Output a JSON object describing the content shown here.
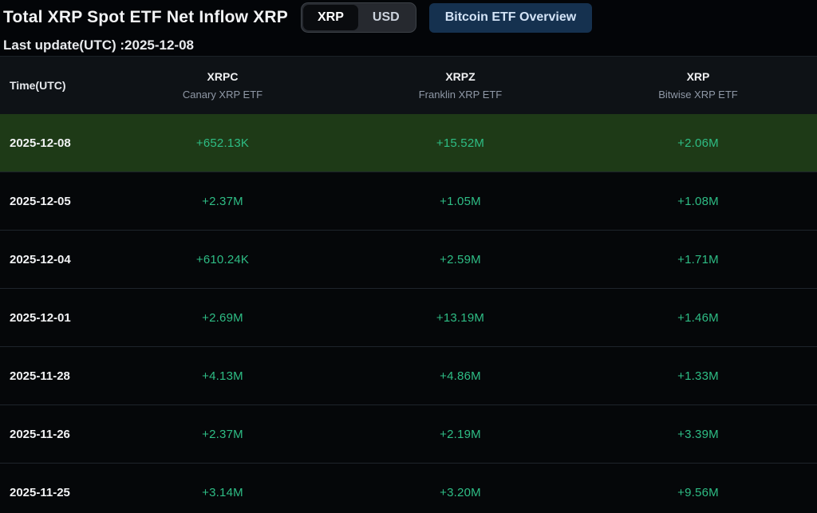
{
  "header": {
    "title": "Total XRP Spot ETF Net Inflow XRP",
    "toggle": {
      "options": [
        "XRP",
        "USD"
      ],
      "selected": "XRP"
    },
    "overview_button_label": "Bitcoin ETF Overview",
    "last_update": "Last update(UTC) :2025-12-08"
  },
  "table": {
    "time_header": "Time(UTC)",
    "columns": [
      {
        "ticker": "XRPC",
        "name": "Canary XRP ETF"
      },
      {
        "ticker": "XRPZ",
        "name": "Franklin XRP ETF"
      },
      {
        "ticker": "XRP",
        "name": "Bitwise XRP ETF"
      }
    ],
    "rows": [
      {
        "date": "2025-12-08",
        "values": [
          "+652.13K",
          "+15.52M",
          "+2.06M"
        ],
        "highlighted": true
      },
      {
        "date": "2025-12-05",
        "values": [
          "+2.37M",
          "+1.05M",
          "+1.08M"
        ],
        "highlighted": false
      },
      {
        "date": "2025-12-04",
        "values": [
          "+610.24K",
          "+2.59M",
          "+1.71M"
        ],
        "highlighted": false
      },
      {
        "date": "2025-12-01",
        "values": [
          "+2.69M",
          "+13.19M",
          "+1.46M"
        ],
        "highlighted": false
      },
      {
        "date": "2025-11-28",
        "values": [
          "+4.13M",
          "+4.86M",
          "+1.33M"
        ],
        "highlighted": false
      },
      {
        "date": "2025-11-26",
        "values": [
          "+2.37M",
          "+2.19M",
          "+3.39M"
        ],
        "highlighted": false
      },
      {
        "date": "2025-11-25",
        "values": [
          "+3.14M",
          "+3.20M",
          "+9.56M"
        ],
        "highlighted": false
      }
    ]
  },
  "colors": {
    "page_bg": "#030508",
    "table_header_bg": "#0e1216",
    "row_bg": "#050709",
    "highlight_row_bg": "#1e3a17",
    "value_green": "#2ebd85",
    "overview_button_bg": "#15314f",
    "overview_button_text": "#d3e3f6",
    "toggle_bg": "#26292f",
    "toggle_border": "#3c4147",
    "toggle_selected_bg": "#0a0c0f"
  }
}
